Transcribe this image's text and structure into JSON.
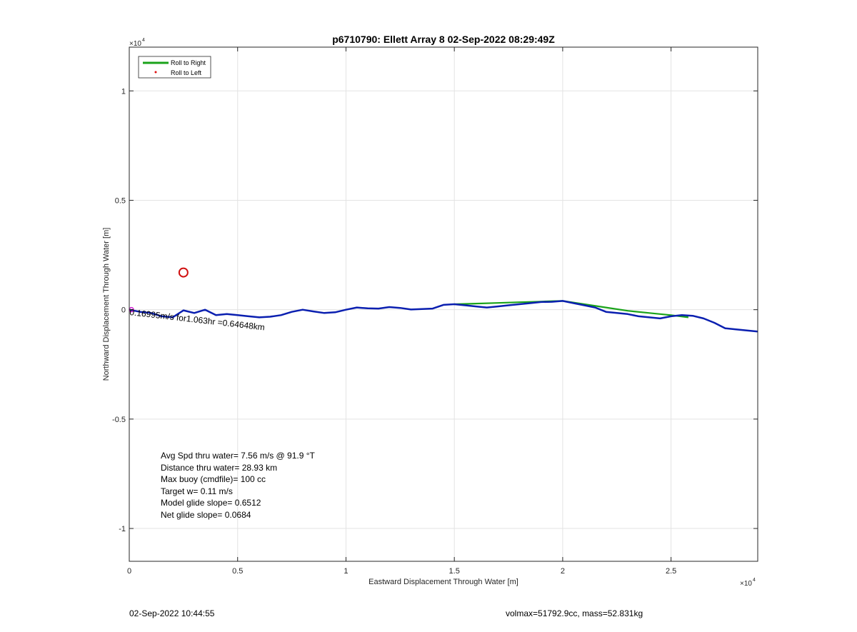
{
  "chart_data": {
    "type": "line",
    "title": "p6710790: Ellett Array 8 02-Sep-2022 08:29:49Z",
    "xlabel": "Eastward Displacement Through Water [m]",
    "ylabel": "Northward Displacement Through Water [m]",
    "xlim": [
      0,
      29000
    ],
    "ylim": [
      -11500,
      12000
    ],
    "x_exponent_label": "×10",
    "x_exponent_power": "4",
    "y_exponent_label": "×10",
    "y_exponent_power": "4",
    "x_ticks": [
      {
        "value": 0,
        "label": "0"
      },
      {
        "value": 5000,
        "label": "0.5"
      },
      {
        "value": 10000,
        "label": "1"
      },
      {
        "value": 15000,
        "label": "1.5"
      },
      {
        "value": 20000,
        "label": "2"
      },
      {
        "value": 25000,
        "label": "2.5"
      }
    ],
    "y_ticks": [
      {
        "value": -10000,
        "label": "-1"
      },
      {
        "value": -5000,
        "label": "-0.5"
      },
      {
        "value": 0,
        "label": "0"
      },
      {
        "value": 5000,
        "label": "0.5"
      },
      {
        "value": 10000,
        "label": "1"
      }
    ],
    "grid": true,
    "legend_placement": "top-left",
    "legend": [
      {
        "name": "Roll to Right",
        "color": "#1aa31a",
        "style": "line"
      },
      {
        "name": "Roll to Left",
        "color": "#e01010",
        "style": "dot"
      }
    ],
    "series": [
      {
        "name": "",
        "color": "#0a1fb0",
        "x": [
          0,
          500,
          1000,
          1500,
          2000,
          2500,
          3000,
          3500,
          4000,
          4500,
          5000,
          5500,
          6000,
          6500,
          7000,
          7500,
          8000,
          8500,
          9000,
          9500,
          10000,
          10500,
          11000,
          11500,
          12000,
          12500,
          13000,
          13500,
          14000,
          14500,
          15000,
          15500,
          16000,
          16500,
          17000,
          17500,
          18000,
          18500,
          19000,
          19500,
          20000,
          20500,
          21000,
          21500,
          22000,
          22500,
          23000,
          23500,
          24000,
          24500,
          25000,
          25500,
          26000,
          26500,
          27000,
          27500,
          28000,
          28500,
          29000
        ],
        "y": [
          0,
          -100,
          -150,
          -300,
          -350,
          -30,
          -150,
          0,
          -250,
          -200,
          -250,
          -300,
          -350,
          -320,
          -250,
          -100,
          0,
          -80,
          -150,
          -120,
          0,
          100,
          60,
          50,
          120,
          80,
          10,
          30,
          50,
          220,
          250,
          200,
          150,
          100,
          150,
          200,
          250,
          300,
          350,
          360,
          400,
          300,
          200,
          100,
          -100,
          -150,
          -200,
          -300,
          -350,
          -400,
          -300,
          -250,
          -280,
          -400,
          -600,
          -850,
          -900,
          -950,
          -1000
        ]
      },
      {
        "name": "",
        "color": "#1aa31a",
        "x": [
          15000,
          16000,
          17000,
          18000,
          19000,
          19500,
          20000,
          21000,
          22000,
          23000,
          24000,
          25000,
          25800
        ],
        "y": [
          250,
          280,
          310,
          340,
          370,
          390,
          400,
          250,
          100,
          -50,
          -150,
          -250,
          -350
        ]
      }
    ],
    "marker": {
      "x": 2500,
      "y": 1700,
      "color": "#d01010"
    },
    "start_marker": {
      "x": 100,
      "y": 0,
      "color": "#d020d0"
    },
    "annotation": "0.16995m/s for1.063hr =0.64648km",
    "text_box": [
      "Avg Spd thru water=  7.56 m/s @  91.9 °T",
      "Distance thru water= 28.93 km",
      "Max buoy (cmdfile)= 100 cc",
      "Target w= 0.11 m/s",
      "Model glide slope= 0.6512",
      "Net glide slope= 0.0684"
    ]
  },
  "footer": {
    "left": "02-Sep-2022 10:44:55",
    "right": "volmax=51792.9cc, mass=52.831kg"
  }
}
